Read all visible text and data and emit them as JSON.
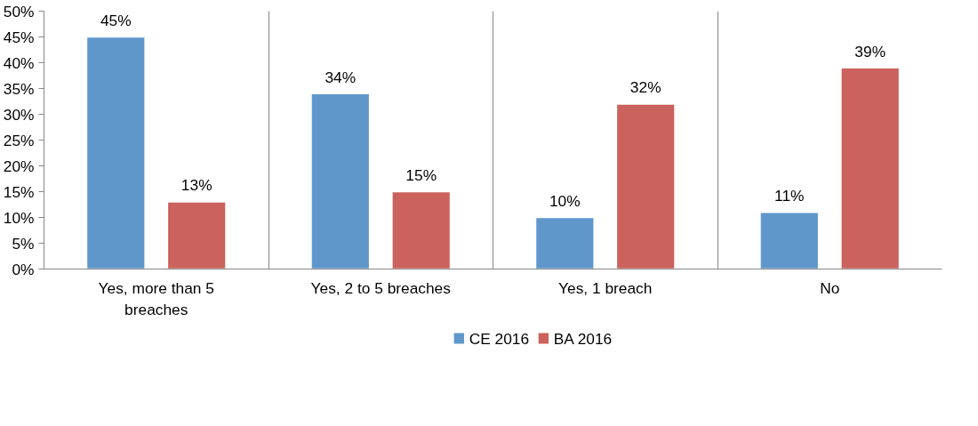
{
  "chart_data": {
    "type": "bar",
    "categories": [
      "Yes, more than 5 breaches",
      "Yes, 2 to 5 breaches",
      "Yes, 1 breach",
      "No"
    ],
    "series": [
      {
        "name": "CE 2016",
        "color": "#5f97cb",
        "values": [
          45,
          34,
          10,
          11
        ],
        "value_labels": [
          "45%",
          "34%",
          "10%",
          "11%"
        ]
      },
      {
        "name": "BA 2016",
        "color": "#cb625d",
        "values": [
          13,
          15,
          32,
          39
        ],
        "value_labels": [
          "13%",
          "15%",
          "32%",
          "39%"
        ]
      }
    ],
    "ylim": [
      0,
      50
    ],
    "yticks": [
      {
        "value": 0,
        "label": "0%"
      },
      {
        "value": 5,
        "label": "5%"
      },
      {
        "value": 10,
        "label": "10%"
      },
      {
        "value": 15,
        "label": "15%"
      },
      {
        "value": 20,
        "label": "20%"
      },
      {
        "value": 25,
        "label": "25%"
      },
      {
        "value": 30,
        "label": "30%"
      },
      {
        "value": 35,
        "label": "35%"
      },
      {
        "value": 40,
        "label": "40%"
      },
      {
        "value": 45,
        "label": "45%"
      },
      {
        "value": 50,
        "label": "50%"
      }
    ],
    "grid": "x",
    "legend": "bottom"
  }
}
